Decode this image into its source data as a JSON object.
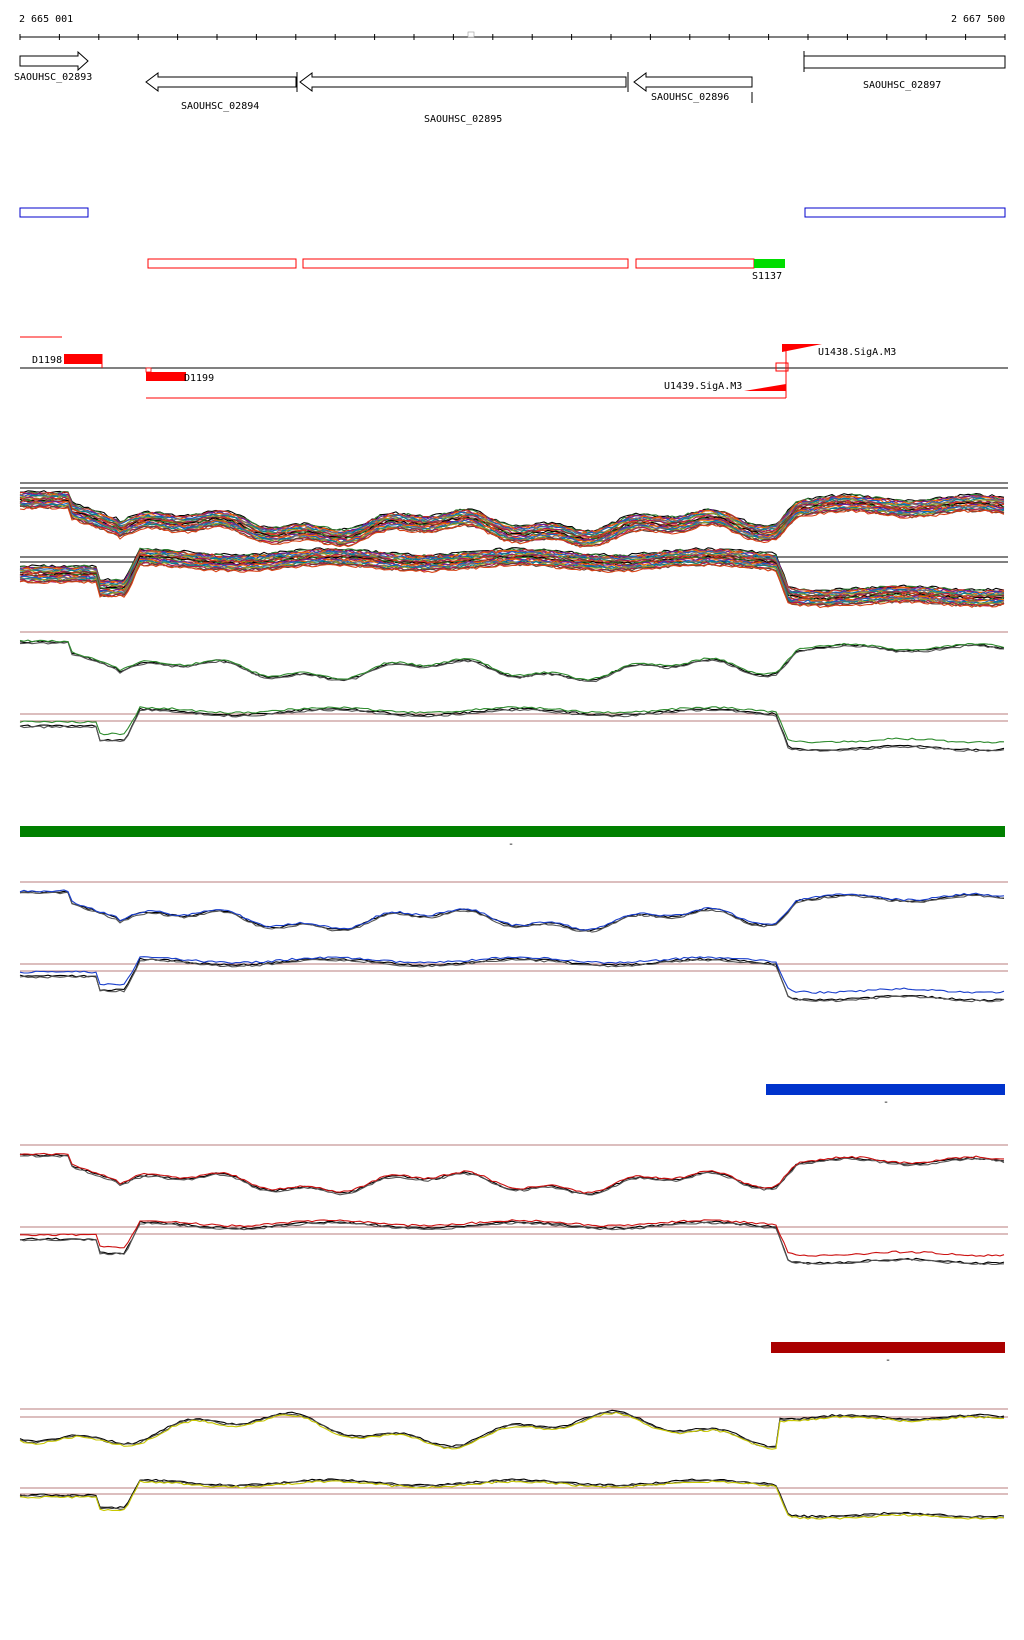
{
  "coordinates": {
    "start": "2 665 001",
    "end": "2 667 500"
  },
  "genes": [
    {
      "name": "SAOUHSC_02893",
      "strand": "+"
    },
    {
      "name": "SAOUHSC_02894",
      "strand": "-"
    },
    {
      "name": "SAOUHSC_02895",
      "strand": "-"
    },
    {
      "name": "SAOUHSC_02896",
      "strand": "-"
    },
    {
      "name": "SAOUHSC_02897",
      "strand": "+"
    }
  ],
  "segments": {
    "highlighted_label": "S1137"
  },
  "features": {
    "downstream": [
      "D1198",
      "D1199"
    ],
    "upstream": [
      "U1438.SigA.M3",
      "U1439.SigA.M3"
    ]
  },
  "condition_bars": [
    {
      "marker": "-",
      "color": "#008000"
    },
    {
      "marker": "-",
      "color": "#0033cc"
    },
    {
      "marker": "-",
      "color": "#aa0000"
    }
  ],
  "colors": {
    "forward_segment": "#0000cc",
    "reverse_segment": "#ff0000",
    "highlight_segment": "#00dd00",
    "threshold_line": "#a05050"
  }
}
